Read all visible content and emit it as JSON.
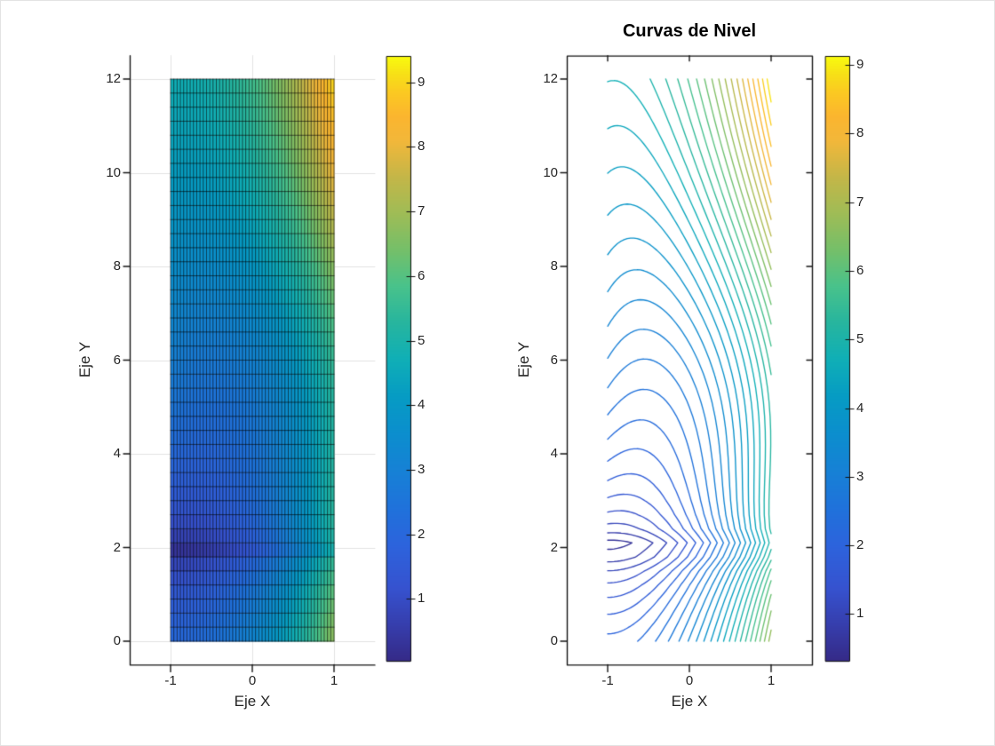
{
  "figure": {
    "background": "#ffffff",
    "frame_color": "#e3e3e3"
  },
  "left_plot": {
    "xlabel": "Eje X",
    "ylabel": "Eje Y",
    "xtick_labels": [
      "-1",
      "0",
      "1"
    ],
    "ytick_labels": [
      "0",
      "2",
      "4",
      "6",
      "8",
      "10",
      "12"
    ]
  },
  "right_plot": {
    "title": "Curvas de Nivel",
    "xlabel": "Eje X",
    "ylabel": "Eje Y",
    "xtick_labels": [
      "-1",
      "0",
      "1"
    ],
    "ytick_labels": [
      "0",
      "2",
      "4",
      "6",
      "8",
      "10",
      "12"
    ]
  },
  "left_colorbar": {
    "tick_labels": [
      "1",
      "2",
      "3",
      "4",
      "5",
      "6",
      "7",
      "8",
      "9"
    ]
  },
  "right_colorbar": {
    "tick_labels": [
      "1",
      "2",
      "3",
      "4",
      "5",
      "6",
      "7",
      "8",
      "9"
    ]
  },
  "chart_data": [
    {
      "type": "heatmap",
      "subtype": "flat-shaded-mesh",
      "xlabel": "Eje X",
      "ylabel": "Eje Y",
      "xlim": [
        -1.5,
        1.5
      ],
      "ylim": [
        -0.5,
        12.5
      ],
      "x_domain": [
        -1,
        1
      ],
      "y_domain": [
        0,
        12
      ],
      "xticks": [
        -1,
        0,
        1
      ],
      "yticks": [
        0,
        2,
        4,
        6,
        8,
        10,
        12
      ],
      "grid": true,
      "box": false,
      "grid_nx": 50,
      "grid_ny": 40,
      "colormap": "parula",
      "clim": [
        0.04,
        9.41
      ],
      "colorbar_ticks": [
        1,
        2,
        3,
        4,
        5,
        6,
        7,
        8,
        9
      ],
      "surface_min_at": [
        -1,
        2
      ],
      "surface_max_at": [
        1,
        12
      ],
      "z_function_approx": "z ~ 1.175*(x+1)^2 + 1.5*sqrt(|y-2|) - 0.45*(x+1)*max(y-2,0)*exp(-((y-2)/5.5)^2)",
      "mesh_edge_color": "#000000"
    },
    {
      "type": "contour",
      "title": "Curvas de Nivel",
      "xlabel": "Eje X",
      "ylabel": "Eje Y",
      "xlim": [
        -1.5,
        1.5
      ],
      "ylim": [
        -0.5,
        12.5
      ],
      "x_domain": [
        -1,
        1
      ],
      "y_domain": [
        0,
        12
      ],
      "xticks": [
        -1,
        0,
        1
      ],
      "yticks": [
        0,
        2,
        4,
        6,
        8,
        10,
        12
      ],
      "grid": false,
      "box": true,
      "levels_min": 0.32,
      "levels_step": 0.245,
      "levels_count": 37,
      "colormap": "parula",
      "clim": [
        0.32,
        9.13
      ],
      "colorbar_ticks": [
        1,
        2,
        3,
        4,
        5,
        6,
        7,
        8,
        9
      ],
      "z_function_approx": "z ~ 1.175*(x+1)^2 + 1.5*sqrt(|y-2|) - 0.45*(x+1)*max(y-2,0)*exp(-((y-2)/5.5)^2)"
    }
  ],
  "colormap_parula_stops": [
    [
      0.0,
      "#352a87"
    ],
    [
      0.06,
      "#363ead"
    ],
    [
      0.12,
      "#3652cf"
    ],
    [
      0.19,
      "#2d63dc"
    ],
    [
      0.25,
      "#2071db"
    ],
    [
      0.31,
      "#1780d6"
    ],
    [
      0.38,
      "#0b8fcd"
    ],
    [
      0.44,
      "#069cc3"
    ],
    [
      0.5,
      "#10afb6"
    ],
    [
      0.56,
      "#27b59e"
    ],
    [
      0.62,
      "#49c28b"
    ],
    [
      0.68,
      "#75bf69"
    ],
    [
      0.74,
      "#9fbc56"
    ],
    [
      0.8,
      "#c4b648"
    ],
    [
      0.86,
      "#f2b73a"
    ],
    [
      0.9,
      "#fbb52f"
    ],
    [
      0.94,
      "#fbc922"
    ],
    [
      0.97,
      "#f7e017"
    ],
    [
      1.0,
      "#f9fb0e"
    ]
  ]
}
